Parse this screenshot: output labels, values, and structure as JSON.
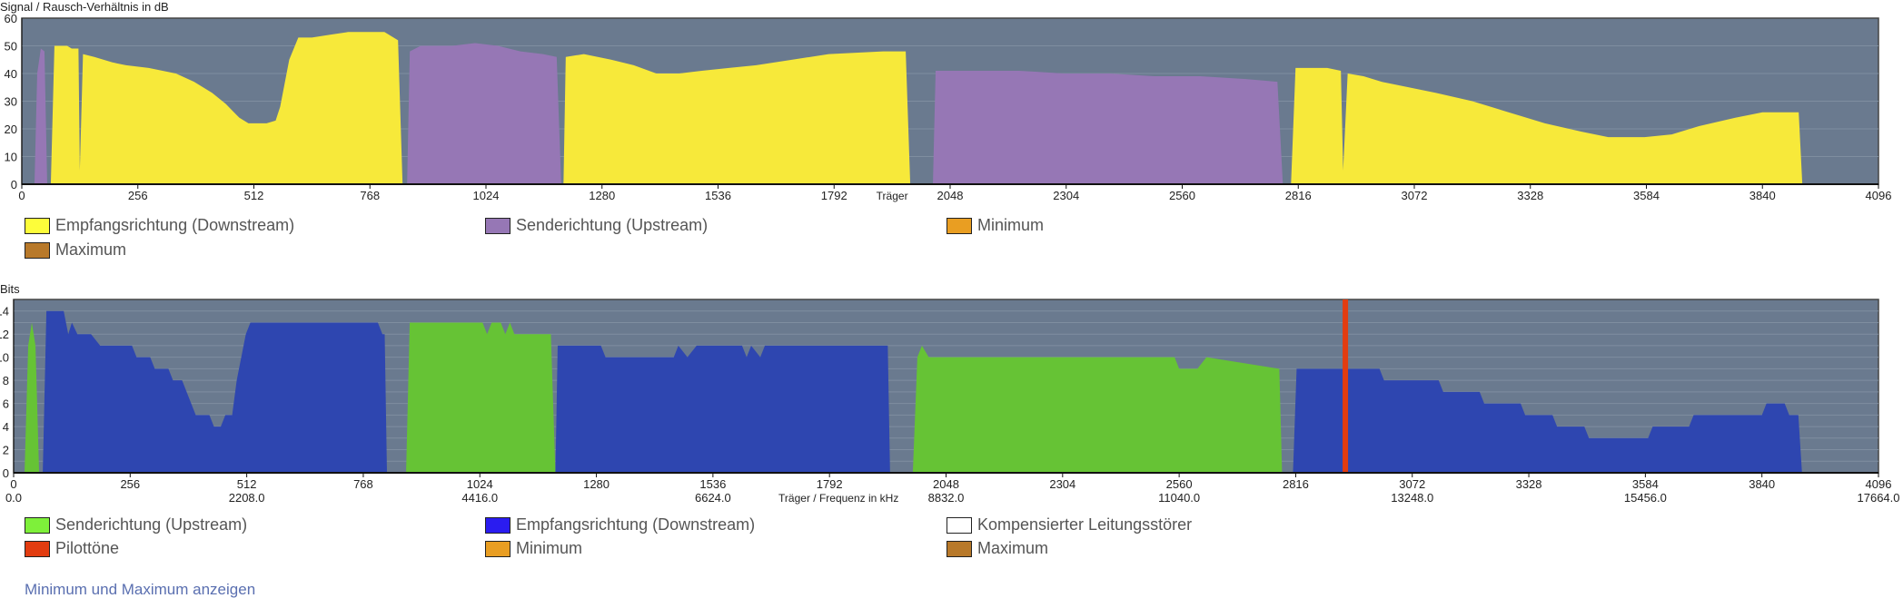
{
  "chart_data": [
    {
      "type": "area",
      "title": "Signal / Rausch-Verhältnis in dB",
      "xlabel": "Träger",
      "ylabel": "Signal / Rausch-Verhältnis in dB",
      "xlim": [
        0,
        4096
      ],
      "ylim": [
        0,
        60
      ],
      "xticks": [
        "0",
        "256",
        "512",
        "768",
        "1024",
        "1280",
        "1536",
        "1792",
        "2048",
        "2304",
        "2560",
        "2816",
        "3072",
        "3328",
        "3584",
        "3840",
        "4096"
      ],
      "yticks": [
        "0",
        "10",
        "20",
        "30",
        "40",
        "50",
        "60"
      ],
      "grid": true,
      "series": [
        {
          "name": "Empfangsrichtung (Downstream)",
          "color": "#f7e93a",
          "segments": [
            [
              [
                64,
                0
              ],
              [
                72,
                50
              ],
              [
                100,
                50
              ],
              [
                110,
                49
              ],
              [
                125,
                49
              ],
              [
                128,
                5
              ],
              [
                135,
                47
              ],
              [
                160,
                46
              ],
              [
                200,
                44
              ],
              [
                230,
                43
              ],
              [
                280,
                42
              ],
              [
                340,
                40
              ],
              [
                380,
                37
              ],
              [
                420,
                33
              ],
              [
                450,
                29
              ],
              [
                480,
                24
              ],
              [
                500,
                22
              ],
              [
                520,
                22
              ],
              [
                540,
                22
              ],
              [
                560,
                23
              ],
              [
                570,
                28
              ],
              [
                590,
                45
              ],
              [
                610,
                53
              ],
              [
                640,
                53
              ],
              [
                680,
                54
              ],
              [
                720,
                55
              ],
              [
                800,
                55
              ],
              [
                830,
                52
              ],
              [
                840,
                0
              ]
            ],
            [
              [
                1195,
                0
              ],
              [
                1200,
                46
              ],
              [
                1240,
                47
              ],
              [
                1300,
                45
              ],
              [
                1350,
                43
              ],
              [
                1400,
                40
              ],
              [
                1450,
                40
              ],
              [
                1500,
                41
              ],
              [
                1560,
                42
              ],
              [
                1620,
                43
              ],
              [
                1700,
                45
              ],
              [
                1780,
                47
              ],
              [
                1900,
                48
              ],
              [
                1950,
                48
              ],
              [
                1960,
                0
              ]
            ],
            [
              [
                2800,
                0
              ],
              [
                2810,
                42
              ],
              [
                2880,
                42
              ],
              [
                2910,
                41
              ],
              [
                2915,
                5
              ],
              [
                2925,
                40
              ],
              [
                2960,
                39
              ],
              [
                3000,
                37
              ],
              [
                3060,
                35
              ],
              [
                3120,
                33
              ],
              [
                3200,
                30
              ],
              [
                3280,
                26
              ],
              [
                3360,
                22
              ],
              [
                3440,
                19
              ],
              [
                3500,
                17
              ],
              [
                3580,
                17
              ],
              [
                3640,
                18
              ],
              [
                3700,
                21
              ],
              [
                3780,
                24
              ],
              [
                3840,
                26
              ],
              [
                3920,
                26
              ],
              [
                3928,
                0
              ]
            ]
          ]
        },
        {
          "name": "Senderichtung (Upstream)",
          "color": "#9677b5",
          "segments": [
            [
              [
                28,
                0
              ],
              [
                34,
                40
              ],
              [
                42,
                49
              ],
              [
                50,
                48
              ],
              [
                56,
                0
              ]
            ],
            [
              [
                850,
                0
              ],
              [
                856,
                48
              ],
              [
                880,
                50
              ],
              [
                950,
                50
              ],
              [
                1000,
                51
              ],
              [
                1050,
                50
              ],
              [
                1100,
                48
              ],
              [
                1150,
                47
              ],
              [
                1180,
                46
              ],
              [
                1190,
                0
              ]
            ],
            [
              [
                2010,
                0
              ],
              [
                2016,
                41
              ],
              [
                2100,
                41
              ],
              [
                2200,
                41
              ],
              [
                2300,
                40
              ],
              [
                2400,
                40
              ],
              [
                2500,
                39
              ],
              [
                2600,
                39
              ],
              [
                2700,
                38
              ],
              [
                2770,
                37
              ],
              [
                2782,
                0
              ]
            ]
          ]
        },
        {
          "name": "Minimum",
          "color": "#e99e22",
          "segments": []
        },
        {
          "name": "Maximum",
          "color": "#b8792a",
          "segments": []
        }
      ]
    },
    {
      "type": "area",
      "title": "Bits",
      "xlabel": "Träger / Frequenz in kHz",
      "ylabel": "Bits",
      "xlim": [
        0,
        4096
      ],
      "ylim": [
        0,
        15
      ],
      "xticks": [
        "0",
        "256",
        "512",
        "768",
        "1024",
        "1280",
        "1536",
        "1792",
        "2048",
        "2304",
        "2560",
        "2816",
        "3072",
        "3328",
        "3584",
        "3840",
        "4096"
      ],
      "xticks2": [
        "0.0",
        "2208.0",
        "4416.0",
        "6624.0",
        "8832.0",
        "11040.0",
        "13248.0",
        "15456.0",
        "17664.0"
      ],
      "yticks": [
        "0",
        "2",
        "4",
        "6",
        "8",
        "10",
        "12",
        "14"
      ],
      "grid": true,
      "series": [
        {
          "name": "Senderichtung (Upstream)",
          "color": "#66c335",
          "segments": [
            [
              [
                24,
                0
              ],
              [
                32,
                11
              ],
              [
                40,
                13
              ],
              [
                48,
                11
              ],
              [
                56,
                0
              ]
            ],
            [
              [
                862,
                0
              ],
              [
                870,
                13
              ],
              [
                1030,
                13
              ],
              [
                1040,
                12
              ],
              [
                1050,
                13
              ],
              [
                1070,
                13
              ],
              [
                1080,
                12
              ],
              [
                1090,
                13
              ],
              [
                1100,
                12
              ],
              [
                1180,
                12
              ],
              [
                1190,
                0
              ]
            ],
            [
              [
                1975,
                0
              ],
              [
                1985,
                10
              ],
              [
                1995,
                11
              ],
              [
                2010,
                10
              ],
              [
                2550,
                10
              ],
              [
                2560,
                9
              ],
              [
                2600,
                9
              ],
              [
                2620,
                10
              ],
              [
                2780,
                9
              ],
              [
                2786,
                0
              ]
            ]
          ]
        },
        {
          "name": "Empfangsrichtung (Downstream)",
          "color": "#2e46b0",
          "segments": [
            [
              [
                64,
                0
              ],
              [
                72,
                14
              ],
              [
                110,
                14
              ],
              [
                120,
                12
              ],
              [
                128,
                13
              ],
              [
                140,
                12
              ],
              [
                170,
                12
              ],
              [
                190,
                11
              ],
              [
                260,
                11
              ],
              [
                270,
                10
              ],
              [
                300,
                10
              ],
              [
                310,
                9
              ],
              [
                340,
                9
              ],
              [
                350,
                8
              ],
              [
                370,
                8
              ],
              [
                380,
                7
              ],
              [
                390,
                6
              ],
              [
                400,
                5
              ],
              [
                430,
                5
              ],
              [
                440,
                4
              ],
              [
                455,
                4
              ],
              [
                465,
                5
              ],
              [
                480,
                5
              ],
              [
                490,
                8
              ],
              [
                510,
                12
              ],
              [
                520,
                13
              ],
              [
                800,
                13
              ],
              [
                810,
                12
              ],
              [
                815,
                12
              ],
              [
                820,
                0
              ]
            ],
            [
              [
                1190,
                0
              ],
              [
                1195,
                11
              ],
              [
                1290,
                11
              ],
              [
                1300,
                10
              ],
              [
                1450,
                10
              ],
              [
                1460,
                11
              ],
              [
                1480,
                10
              ],
              [
                1500,
                11
              ],
              [
                1600,
                11
              ],
              [
                1610,
                10
              ],
              [
                1620,
                11
              ],
              [
                1640,
                10
              ],
              [
                1650,
                11
              ],
              [
                1920,
                11
              ],
              [
                1925,
                0
              ]
            ],
            [
              [
                2810,
                0
              ],
              [
                2818,
                9
              ],
              [
                3000,
                9
              ],
              [
                3010,
                8
              ],
              [
                3130,
                8
              ],
              [
                3140,
                7
              ],
              [
                3220,
                7
              ],
              [
                3230,
                6
              ],
              [
                3310,
                6
              ],
              [
                3320,
                5
              ],
              [
                3380,
                5
              ],
              [
                3390,
                4
              ],
              [
                3450,
                4
              ],
              [
                3460,
                3
              ],
              [
                3590,
                3
              ],
              [
                3600,
                4
              ],
              [
                3680,
                4
              ],
              [
                3690,
                5
              ],
              [
                3840,
                5
              ],
              [
                3850,
                6
              ],
              [
                3890,
                6
              ],
              [
                3900,
                5
              ],
              [
                3920,
                5
              ],
              [
                3928,
                0
              ]
            ]
          ]
        },
        {
          "name": "Kompensierter Leitungsstörer",
          "color": "#ffffff",
          "segments": []
        },
        {
          "name": "Pilottöne",
          "color": "#e23c10",
          "carrier": 2925
        },
        {
          "name": "Minimum",
          "color": "#e99e22",
          "segments": []
        },
        {
          "name": "Maximum",
          "color": "#b8792a",
          "segments": []
        }
      ]
    }
  ],
  "link_label": "Minimum und Maximum anzeigen"
}
